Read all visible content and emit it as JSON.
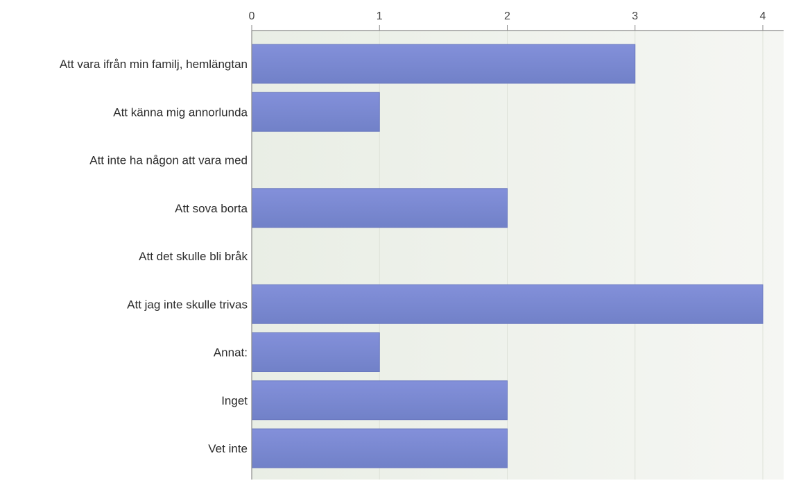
{
  "chart_data": {
    "type": "bar",
    "orientation": "horizontal",
    "categories": [
      "Att vara ifrån min familj, hemlängtan",
      "Att känna mig annorlunda",
      "Att inte ha någon att vara med",
      "Att sova borta",
      "Att det skulle bli bråk",
      "Att jag inte skulle trivas",
      "Annat:",
      "Inget",
      "Vet inte"
    ],
    "values": [
      3,
      1,
      0,
      2,
      0,
      4,
      1,
      2,
      2
    ],
    "xlim": [
      0,
      4
    ],
    "x_ticks": [
      0,
      1,
      2,
      3,
      4
    ],
    "x_tick_labels": [
      "0",
      "1",
      "2",
      "3",
      "4"
    ],
    "x_axis_position": "top",
    "grid": true,
    "legend": "none",
    "bar_color": "#7b89d3",
    "background_color": "#eef1ea",
    "title": "",
    "xlabel": "",
    "ylabel": ""
  }
}
